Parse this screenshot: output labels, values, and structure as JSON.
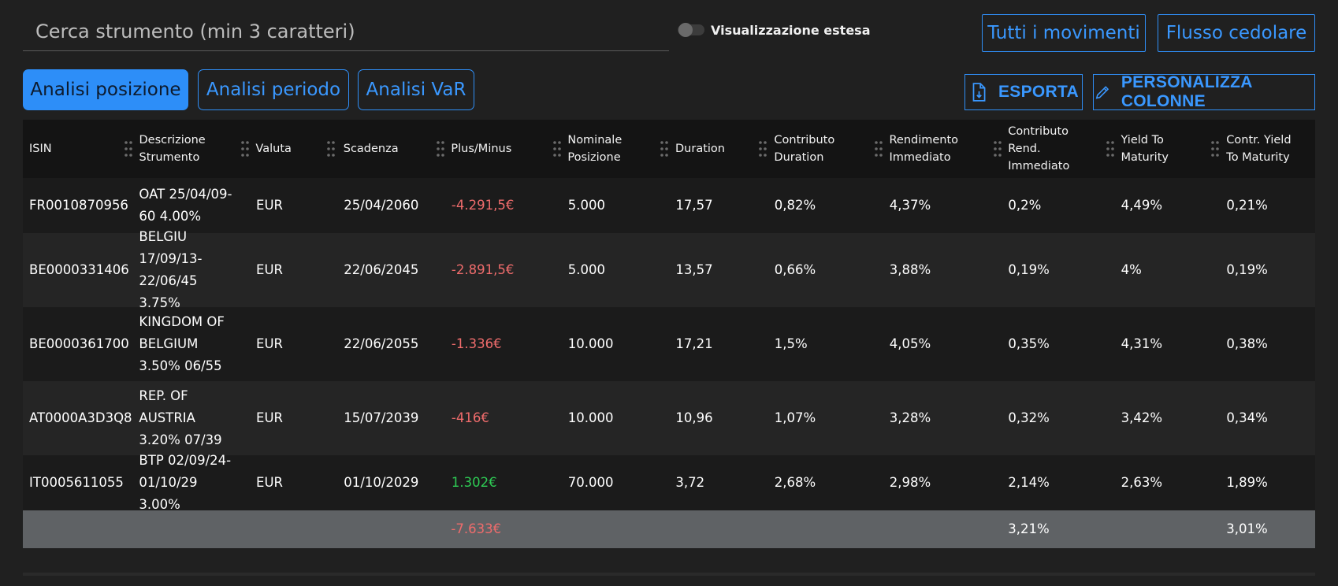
{
  "search": {
    "placeholder": "Cerca strumento (min 3 caratteri)"
  },
  "toggle": {
    "label": "Visualizzazione estesa"
  },
  "top_buttons": {
    "all_movements": "Tutti i movimenti",
    "coupon_flow": "Flusso cedolare"
  },
  "tabs": [
    {
      "label": "Analisi posizione",
      "active": true
    },
    {
      "label": "Analisi periodo",
      "active": false
    },
    {
      "label": "Analisi VaR",
      "active": false
    }
  ],
  "actions": {
    "export": "ESPORTA",
    "customize": "PERSONALIZZA COLONNE"
  },
  "table": {
    "headers": [
      "ISIN",
      "Descrizione Strumento",
      "Valuta",
      "Scadenza",
      "Plus/Minus",
      "Nominale Posizione",
      "Duration",
      "Contributo Duration",
      "Rendimento Immediato",
      "Contributo Rend. Immediato",
      "Yield To Maturity",
      "Contr. Yield To Maturity"
    ],
    "rows": [
      [
        "FR0010870956",
        "OAT 25/04/09-60 4.00%",
        "EUR",
        "25/04/2060",
        "-4.291,5€",
        "5.000",
        "17,57",
        "0,82%",
        "4,37%",
        "0,2%",
        "4,49%",
        "0,21%"
      ],
      [
        "BE0000331406",
        "BELGIU 17/09/13-22/06/45 3.75%",
        "EUR",
        "22/06/2045",
        "-2.891,5€",
        "5.000",
        "13,57",
        "0,66%",
        "3,88%",
        "0,19%",
        "4%",
        "0,19%"
      ],
      [
        "BE0000361700",
        "KINGDOM OF BELGIUM 3.50% 06/55",
        "EUR",
        "22/06/2055",
        "-1.336€",
        "10.000",
        "17,21",
        "1,5%",
        "4,05%",
        "0,35%",
        "4,31%",
        "0,38%"
      ],
      [
        "AT0000A3D3Q8",
        "REP. OF AUSTRIA 3.20% 07/39",
        "EUR",
        "15/07/2039",
        "-416€",
        "10.000",
        "10,96",
        "1,07%",
        "3,28%",
        "0,32%",
        "3,42%",
        "0,34%"
      ],
      [
        "IT0005611055",
        "BTP 02/09/24-01/10/29 3.00%",
        "EUR",
        "01/10/2029",
        "1.302€",
        "70.000",
        "3,72",
        "2,68%",
        "2,98%",
        "2,14%",
        "2,63%",
        "1,89%"
      ]
    ],
    "totals": {
      "plus_minus": "-7.633€",
      "contrib_rend": "3,21%",
      "contr_ytm": "3,01%"
    }
  },
  "colors": {
    "accent": "#2d8ef8",
    "negative": "#ef6c6c",
    "positive": "#2ecb54"
  }
}
